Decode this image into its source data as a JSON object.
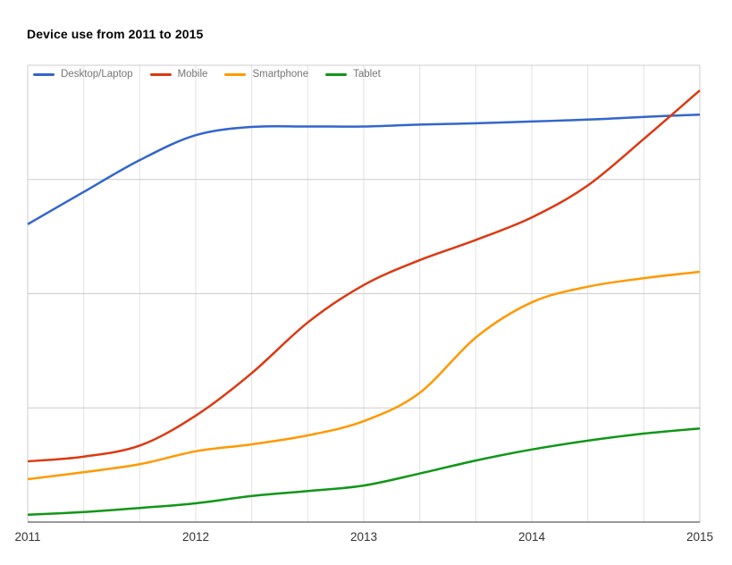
{
  "title": "Device use from 2011 to 2015",
  "legend": {
    "position": "top-left",
    "items": [
      {
        "label": "Desktop/Laptop",
        "color": "#3366cc"
      },
      {
        "label": "Mobile",
        "color": "#dc3912"
      },
      {
        "label": "Smartphone",
        "color": "#ff9900"
      },
      {
        "label": "Tablet",
        "color": "#109618"
      }
    ]
  },
  "axes": {
    "x_tick_labels": [
      "2011",
      "2012",
      "2013",
      "2014",
      "2015"
    ],
    "y_tick_labels": []
  },
  "chart_data": {
    "type": "line",
    "title": "Device use from 2011 to 2015",
    "x": [
      2011,
      2011.33,
      2011.67,
      2012,
      2012.33,
      2012.67,
      2013,
      2013.33,
      2013.67,
      2014,
      2014.33,
      2014.67,
      2015
    ],
    "series": [
      {
        "name": "Desktop/Laptop",
        "color": "#3366cc",
        "values": [
          65.2,
          72.2,
          79.3,
          84.7,
          86.5,
          86.6,
          86.6,
          87.0,
          87.3,
          87.7,
          88.1,
          88.7,
          89.2
        ]
      },
      {
        "name": "Mobile",
        "color": "#dc3912",
        "values": [
          13.3,
          14.3,
          16.8,
          23.3,
          32.5,
          43.8,
          51.9,
          57.3,
          61.8,
          66.7,
          73.6,
          84.0,
          94.5
        ]
      },
      {
        "name": "Smartphone",
        "color": "#ff9900",
        "values": [
          9.4,
          10.9,
          12.7,
          15.5,
          17.0,
          19.0,
          22.1,
          28.2,
          40.5,
          48.1,
          51.5,
          53.4,
          54.8
        ]
      },
      {
        "name": "Tablet",
        "color": "#109618",
        "values": [
          1.6,
          2.2,
          3.1,
          4.1,
          5.7,
          6.8,
          8.0,
          10.6,
          13.5,
          15.9,
          17.8,
          19.4,
          20.5
        ]
      }
    ],
    "xlabel": "",
    "ylabel": "",
    "xlim": [
      2011,
      2015
    ],
    "ylim": [
      0,
      100
    ],
    "x_major_ticks": [
      2011,
      2012,
      2013,
      2014,
      2015
    ],
    "x_minor_gridline_interval_years": 0.3333,
    "y_gridlines": [
      25,
      50,
      75,
      100
    ],
    "grid": true,
    "smooth": true,
    "legend_position": "top-left"
  },
  "colors": {
    "gridline_vertical": "#e2e2e2",
    "gridline_horizontal": "#cccccc",
    "plot_border": "#cccccc",
    "x_axis_line": "#333333",
    "title_text": "#000000",
    "axis_label_text": "#333333",
    "legend_text": "#757575",
    "background": "#ffffff"
  }
}
